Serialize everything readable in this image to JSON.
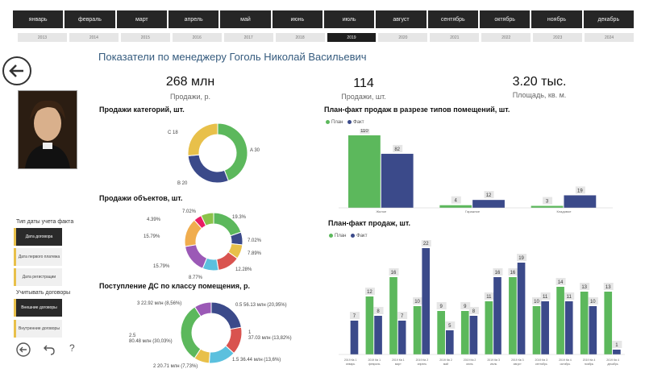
{
  "months": [
    "январь",
    "февраль",
    "март",
    "апрель",
    "май",
    "июнь",
    "июль",
    "август",
    "сентябрь",
    "октябрь",
    "ноябрь",
    "декабрь"
  ],
  "years": [
    "2013",
    "2014",
    "2015",
    "2016",
    "2017",
    "2018",
    "2019",
    "2020",
    "2021",
    "2022",
    "2023",
    "2024"
  ],
  "active_year": "2019",
  "title": "Показатели по менеджеру Гоголь Николай Васильевич",
  "kpis": [
    {
      "value": "268 млн",
      "label": "Продажи, р."
    },
    {
      "value": "114",
      "label": "Продажи, шт."
    },
    {
      "value": "3.20 тыс.",
      "label": "Площадь, кв. м."
    }
  ],
  "sidebar": {
    "fact_type_label": "Тип даты учета факта",
    "fact_buttons": [
      "Дата договора",
      "Дата первого платежа",
      "Дата регистрации"
    ],
    "contracts_label": "Учитывать договоры",
    "contract_buttons": [
      "Внешние договоры",
      "Внутренние договоры"
    ]
  },
  "colors": {
    "plan": "#5cb85c",
    "fact": "#3b4a8a",
    "accent": "#e8c04a",
    "title": "#355b7e"
  },
  "legend": {
    "plan": "План",
    "fact": "Факт"
  },
  "icons": [
    "back-arrow-circle-icon",
    "back-icon",
    "undo-icon",
    "help-icon"
  ],
  "sections": {
    "categories": "Продажи категорий, шт.",
    "objects": "Продажи объектов, шт.",
    "income": "Поступление ДС по классу помещения, р.",
    "plan_fact_types": "План-факт продаж в разрезе типов помещений, шт.",
    "plan_fact": "План-факт продаж, шт."
  },
  "chart_data": [
    {
      "type": "pie",
      "title": "Продажи категорий, шт.",
      "labels": [
        "A 30",
        "B 20",
        "C 18"
      ],
      "values": [
        30,
        20,
        18
      ],
      "colors": [
        "#5cb85c",
        "#3b4a8a",
        "#e8c04a"
      ]
    },
    {
      "type": "pie",
      "title": "Продажи объектов, шт.",
      "labels": [
        "19.3%",
        "7.02%",
        "7.89%",
        "12.28%",
        "8.77%",
        "15.79%",
        "15.79%",
        "4.39%",
        "7.02%"
      ],
      "values": [
        19.3,
        7.02,
        7.89,
        12.28,
        8.77,
        15.79,
        15.79,
        4.39,
        7.02
      ],
      "colors": [
        "#5cb85c",
        "#3b4a8a",
        "#e8c04a",
        "#d9534f",
        "#5bc0de",
        "#9b59b6",
        "#f0ad4e",
        "#e91e63",
        "#8bc34a"
      ]
    },
    {
      "type": "pie",
      "title": "Поступление ДС по классу помещения, р.",
      "labels": [
        "0.5 56.13 млн (20,95%)",
        "1 37.03 млн (13,82%)",
        "1.5 36.44 млн (13,6%)",
        "2 20.71 млн (7,73%)",
        "2.5 80.48 млн (30,03%)",
        "3 22.92 млн (8,56%)"
      ],
      "values": [
        20.95,
        13.82,
        13.6,
        7.73,
        30.03,
        8.56
      ],
      "colors": [
        "#3b4a8a",
        "#d9534f",
        "#5bc0de",
        "#e8c04a",
        "#5cb85c",
        "#9b59b6"
      ]
    },
    {
      "type": "bar",
      "title": "План-факт продаж в разрезе типов помещений, шт.",
      "categories": [
        "Жилое",
        "Гаражное",
        "Кладовое"
      ],
      "series": [
        {
          "name": "План",
          "values": [
            110,
            4,
            3
          ]
        },
        {
          "name": "Факт",
          "values": [
            82,
            12,
            19
          ]
        }
      ]
    },
    {
      "type": "bar",
      "title": "План-факт продаж, шт.",
      "categories": [
        "2019 Кв 1 январь",
        "2019 Кв 1 февраль",
        "2019 Кв 1 март",
        "2019 Кв 2 апрель",
        "2019 Кв 2 май",
        "2019 Кв 2 июнь",
        "2019 Кв 3 июль",
        "2019 Кв 3 август",
        "2019 Кв 3 сентябрь",
        "2019 Кв 4 октябрь",
        "2019 Кв 4 ноябрь",
        "2019 Кв 4 декабрь"
      ],
      "series": [
        {
          "name": "План",
          "values": [
            0,
            12,
            16,
            10,
            9,
            9,
            11,
            16,
            10,
            14,
            13,
            13
          ]
        },
        {
          "name": "Факт",
          "values": [
            7,
            8,
            7,
            22,
            5,
            8,
            16,
            19,
            11,
            11,
            10,
            1
          ]
        }
      ]
    }
  ]
}
